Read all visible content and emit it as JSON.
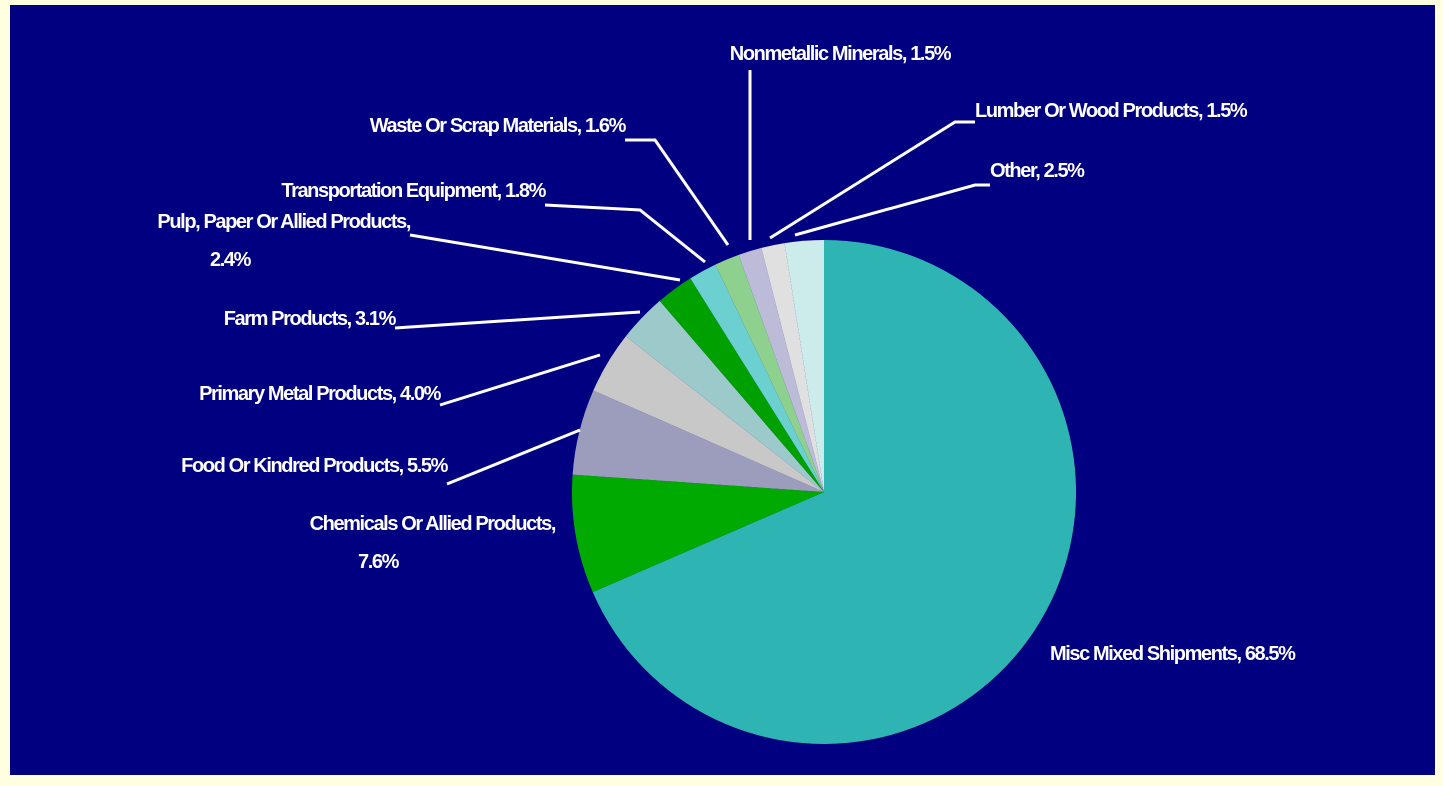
{
  "chart_data": {
    "type": "pie",
    "categories": [
      "Misc Mixed Shipments,",
      "Chemicals Or Allied Products,",
      "Food Or Kindred Products,",
      "Primary Metal Products,",
      "Farm Products,",
      "Pulp, Paper Or Allied Products,",
      "Transportation Equipment,",
      "Waste Or Scrap Materials,",
      "Nonmetallic Minerals,",
      "Lumber Or Wood Products,",
      "Other,"
    ],
    "values": [
      68.5,
      7.6,
      5.5,
      4.0,
      3.1,
      2.4,
      1.8,
      1.6,
      1.5,
      1.5,
      2.5
    ],
    "value_labels": [
      "68.5%",
      "7.6%",
      "5.5%",
      "4.0%",
      "3.1%",
      "2.4%",
      "1.8%",
      "1.6%",
      "1.5%",
      "1.5%",
      "2.5%"
    ],
    "colors": [
      "#2fb4b4",
      "#00aa00",
      "#9c9cbc",
      "#c8c8c8",
      "#9ccaca",
      "#00a000",
      "#6cd0d0",
      "#8ed08e",
      "#bcbcd8",
      "#e0e0e0",
      "#ccecec"
    ]
  }
}
